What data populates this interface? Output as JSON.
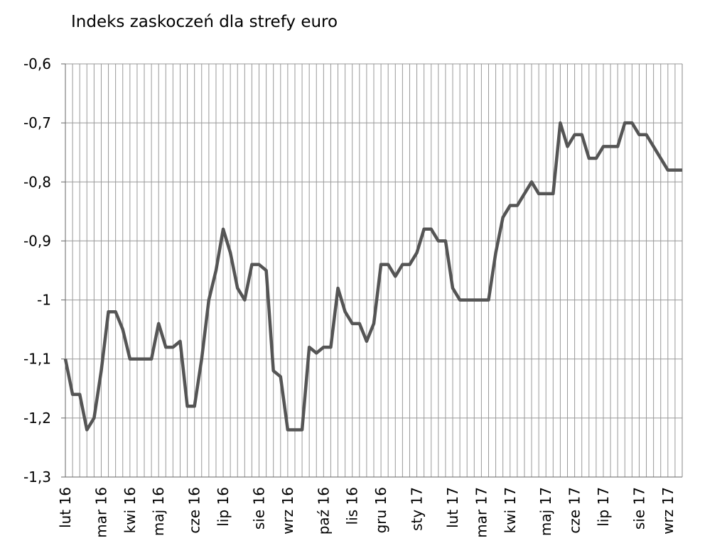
{
  "chart_data": {
    "type": "line",
    "title": "Indeks zaskoczeń dla strefy euro",
    "categories": [
      "lut 16",
      null,
      null,
      null,
      null,
      "mar 16",
      null,
      null,
      null,
      "kwi 16",
      null,
      null,
      null,
      "maj 16",
      null,
      null,
      null,
      null,
      "cze 16",
      null,
      null,
      null,
      "lip 16",
      null,
      null,
      null,
      null,
      "sie 16",
      null,
      null,
      null,
      "wrz 16",
      null,
      null,
      null,
      null,
      "paź 16",
      null,
      null,
      null,
      "lis 16",
      null,
      null,
      null,
      "gru 16",
      null,
      null,
      null,
      null,
      "sty 17",
      null,
      null,
      null,
      null,
      "lut 17",
      null,
      null,
      null,
      "mar 17",
      null,
      null,
      null,
      "kwi 17",
      null,
      null,
      null,
      null,
      "maj 17",
      null,
      null,
      null,
      "cze 17",
      null,
      null,
      null,
      "lip 17",
      null,
      null,
      null,
      null,
      "sie 17",
      null,
      null,
      null,
      "wrz 17",
      null,
      null
    ],
    "series": [
      {
        "name": "Indeks zaskoczeń",
        "color": "#555555",
        "values": [
          -1.1,
          -1.16,
          -1.16,
          -1.22,
          -1.2,
          -1.12,
          -1.02,
          -1.02,
          -1.05,
          -1.1,
          -1.1,
          -1.1,
          -1.1,
          -1.04,
          -1.08,
          -1.08,
          -1.07,
          -1.18,
          -1.18,
          -1.1,
          -1.0,
          -0.95,
          -0.88,
          -0.92,
          -0.98,
          -1.0,
          -0.94,
          -0.94,
          -0.95,
          -1.12,
          -1.13,
          -1.22,
          -1.22,
          -1.22,
          -1.08,
          -1.09,
          -1.08,
          -1.08,
          -0.98,
          -1.02,
          -1.04,
          -1.04,
          -1.07,
          -1.04,
          -0.94,
          -0.94,
          -0.96,
          -0.94,
          -0.94,
          -0.92,
          -0.88,
          -0.88,
          -0.9,
          -0.9,
          -0.98,
          -1.0,
          -1.0,
          -1.0,
          -1.0,
          -1.0,
          -0.92,
          -0.86,
          -0.84,
          -0.84,
          -0.82,
          -0.8,
          -0.82,
          -0.82,
          -0.82,
          -0.7,
          -0.74,
          -0.72,
          -0.72,
          -0.76,
          -0.76,
          -0.74,
          -0.74,
          -0.74,
          -0.7,
          -0.7,
          -0.72,
          -0.72,
          -0.74,
          -0.76,
          -0.78,
          -0.78,
          -0.78
        ]
      }
    ],
    "ylim": [
      -1.3,
      -0.6
    ],
    "yticks": [
      {
        "value": -1.3,
        "label": "-1,3"
      },
      {
        "value": -1.2,
        "label": "-1,2"
      },
      {
        "value": -1.1,
        "label": "-1,1"
      },
      -1,
      {
        "value": -0.9,
        "label": "-0,9"
      },
      {
        "value": -0.8,
        "label": "-0,8"
      },
      {
        "value": -0.7,
        "label": "-0,7"
      },
      {
        "value": -0.6,
        "label": "-0,6"
      }
    ],
    "grid": true
  }
}
